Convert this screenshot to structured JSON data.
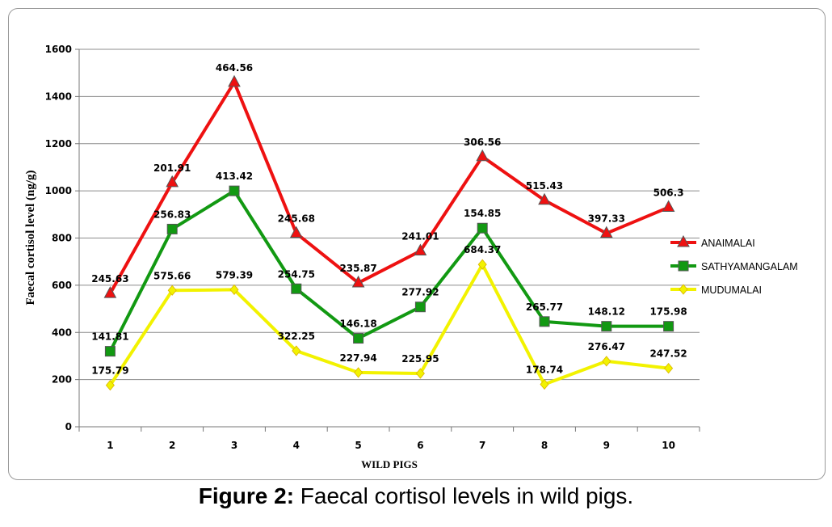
{
  "chart_data": {
    "type": "line",
    "xlabel": "WILD PIGS",
    "ylabel": "Faecal cortisol level (ng/g)",
    "categories": [
      "1",
      "2",
      "3",
      "4",
      "5",
      "6",
      "7",
      "8",
      "9",
      "10"
    ],
    "ylim": [
      0,
      1600
    ],
    "yticks": [
      0,
      200,
      400,
      600,
      800,
      1000,
      1200,
      1400,
      1600
    ],
    "grid": true,
    "legend_position": "right",
    "series": [
      {
        "name": "ANAIMALAI",
        "color": "#ee1111",
        "marker": "triangle",
        "values": [
          565,
          1035,
          1460,
          820,
          610,
          745,
          1145,
          960,
          820,
          930
        ],
        "labels": [
          "245.63",
          "201.91",
          "464.56",
          "245.68",
          "235.87",
          "241.01",
          "306.56",
          "515.43",
          "397.33",
          "506.3"
        ]
      },
      {
        "name": "SATHYAMANGALAM",
        "color": "#129912",
        "marker": "square",
        "values": [
          320,
          838,
          1000,
          585,
          375,
          508,
          842,
          446,
          426,
          426
        ],
        "labels": [
          "141.81",
          "256.83",
          "413.42",
          "254.75",
          "146.18",
          "277.92",
          "154.85",
          "265.77",
          "148.12",
          "175.98"
        ]
      },
      {
        "name": "MUDUMALAI",
        "color": "#f2f200",
        "marker": "diamond",
        "values": [
          176,
          578,
          581,
          322,
          230,
          226,
          688,
          180,
          278,
          248
        ],
        "labels": [
          "175.79",
          "575.66",
          "579.39",
          "322.25",
          "227.94",
          "225.95",
          "684.37",
          "178.74",
          "276.47",
          "247.52"
        ]
      }
    ]
  },
  "caption": {
    "prefix": "Figure 2:",
    "text": " Faecal cortisol levels in wild pigs."
  }
}
